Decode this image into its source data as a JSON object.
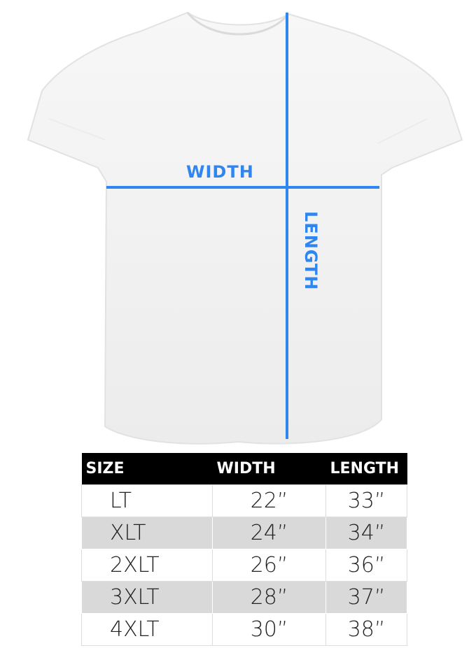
{
  "labels": {
    "width": "WIDTH",
    "length": "LENGTH"
  },
  "colors": {
    "measure_line": "#2f86f0",
    "header_bg": "#000000",
    "alt_row": "#d9d9d9"
  },
  "table": {
    "headers": [
      "SIZE",
      "WIDTH",
      "LENGTH"
    ],
    "rows": [
      [
        "LT",
        "22”",
        "33”"
      ],
      [
        "XLT",
        "24”",
        "34”"
      ],
      [
        "2XLT",
        "26”",
        "36”"
      ],
      [
        "3XLT",
        "28”",
        "37”"
      ],
      [
        "4XLT",
        "30”",
        "38”"
      ]
    ]
  }
}
